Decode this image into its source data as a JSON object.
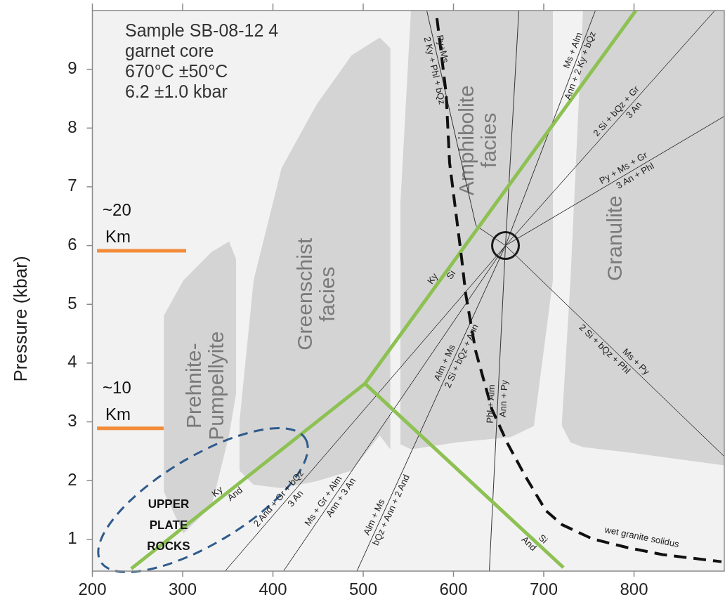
{
  "chart_data": {
    "type": "line",
    "ylabel": "Pressure (kbar)",
    "xlim": [
      200,
      900
    ],
    "ylim": [
      0.46,
      10
    ],
    "xticks": [
      200,
      300,
      400,
      500,
      600,
      700,
      800
    ],
    "yticks": [
      1,
      2,
      3,
      4,
      5,
      6,
      7,
      8,
      9
    ],
    "grid": false,
    "series": [
      {
        "type": "area",
        "name": "Prehnite-Pumpellyite",
        "x": [
          279.2,
          300.9,
          332.0,
          351.4,
          359.2
        ],
        "values": [
          null,
          null,
          null,
          null,
          null
        ],
        "upper": [
          4.81,
          5.41,
          5.89,
          6.07,
          5.77
        ],
        "lower": [
          1.81,
          1.1,
          1.57,
          2.77,
          3.49
        ]
      },
      {
        "type": "area",
        "name": "Greenschist facies",
        "x": [
          363.0,
          378.6,
          409.6,
          448.4,
          487.3,
          518.3,
          530.0
        ],
        "values": [
          null,
          null,
          null,
          null,
          null,
          null,
          null
        ],
        "upper": [
          3.01,
          5.41,
          7.32,
          8.4,
          9.24,
          9.54,
          9.36
        ],
        "lower": [
          2.17,
          1.93,
          1.87,
          1.99,
          2.17,
          2.77,
          2.53
        ]
      },
      {
        "type": "area",
        "name": "Amphibolite facies",
        "x": [
          541.2,
          552.9,
          603.5,
          663.4,
          689.1,
          710.1
        ],
        "values": [
          null,
          null,
          null,
          null,
          null,
          null
        ],
        "upper": [
          6.72,
          10.0,
          10.0,
          10.0,
          10.0,
          10.0
        ],
        "lower": [
          2.62,
          2.53,
          2.65,
          2.74,
          2.93,
          5.41
        ]
      },
      {
        "type": "area",
        "name": "Granulite",
        "x": [
          720.2,
          729.6,
          743.5,
          798.0,
          900
        ],
        "values": [
          null,
          null,
          null,
          null,
          null
        ],
        "upper": [
          3.01,
          5.41,
          10.0,
          10.0,
          10.0
        ],
        "lower": [
          2.93,
          2.65,
          2.57,
          2.47,
          2.26
        ]
      },
      {
        "type": "line",
        "color": "#333333",
        "x": [
          570.4,
          624.9,
          657.6
        ],
        "values": [
          10.0,
          6.34,
          6.0
        ]
      },
      {
        "type": "line",
        "color": "#333333",
        "x": [
          657.6,
          672.4
        ],
        "values": [
          6.0,
          10.0
        ]
      },
      {
        "type": "line",
        "color": "#333333",
        "x": [
          657.6,
          757.2
        ],
        "values": [
          6.0,
          10.0
        ]
      },
      {
        "type": "line",
        "color": "#333333",
        "x": [
          347,
          657.6,
          889.5
        ],
        "values": [
          0.46,
          6.0,
          10.0
        ]
      },
      {
        "type": "line",
        "color": "#333333",
        "x": [
          657.6,
          900
        ],
        "values": [
          6.0,
          8.2
        ]
      },
      {
        "type": "line",
        "color": "#333333",
        "x": [
          657.6,
          900
        ],
        "values": [
          6.0,
          2.41
        ]
      },
      {
        "type": "line",
        "color": "#333333",
        "x": [
          639.7,
          657.6
        ],
        "values": [
          0.46,
          6.0
        ]
      },
      {
        "type": "line",
        "color": "#333333",
        "x": [
          411.7,
          657.6
        ],
        "values": [
          0.46,
          6.0
        ]
      },
      {
        "type": "line",
        "color": "#333333",
        "x": [
          493,
          657.6
        ],
        "values": [
          0.46,
          6.0
        ]
      },
      {
        "type": "line",
        "color": "#8dc153",
        "x": [
          243,
          501.9,
          802
        ],
        "values": [
          0.5,
          3.65,
          10.0
        ]
      },
      {
        "type": "line",
        "color": "#8dc153",
        "x": [
          501.9,
          721.8
        ],
        "values": [
          3.65,
          0.52
        ]
      },
      {
        "type": "line",
        "color": "#111111",
        "line_style": "dashed",
        "x": [
          581.7,
          591.8,
          595.7,
          608.9,
          613.6,
          624.5,
          642.4,
          660.3,
          679.0,
          702.3,
          720.2,
          753.7,
          792.6,
          831.5,
          896.9
        ],
        "values": [
          9.87,
          8.6,
          7.41,
          5.8,
          5.17,
          4.21,
          3.22,
          2.62,
          2.09,
          1.49,
          1.25,
          1.01,
          0.86,
          0.74,
          0.62
        ]
      },
      {
        "type": "line",
        "name": "~20 Km",
        "color": "#f28c3a",
        "x": [
          205.1,
          303.9
        ],
        "values": [
          5.91,
          5.91
        ]
      },
      {
        "type": "line",
        "name": "~10 Km",
        "color": "#f28c3a",
        "x": [
          205.1,
          279
        ],
        "values": [
          2.89,
          2.89
        ]
      },
      {
        "type": "scatter",
        "marker": "circle",
        "color": "#1a1a1a",
        "x": [
          657.6
        ],
        "values": [
          6.0
        ]
      }
    ],
    "annotations": [
      "Sample SB-08-12 4",
      "garnet core",
      "670°C ±50°C",
      "6.2 ±1.0 kbar",
      "UPPER PLATE ROCKS",
      {
        "text": "Ky",
        "x": 343,
        "y": 1.72
      },
      {
        "text": "And",
        "x": 354,
        "y": 1.85
      },
      {
        "text": "Ky",
        "x": 583,
        "y": 5.37
      },
      {
        "text": "Si",
        "x": 592,
        "y": 5.56
      },
      {
        "text": "Si",
        "x": 694,
        "y": 0.92
      },
      {
        "text": "And",
        "x": 688,
        "y": 1.0
      },
      {
        "text": "Py+Ms",
        "x": 580.5,
        "y": 9.32
      },
      {
        "text": "2 Ky + Phl + bQz",
        "x": 585.3,
        "y": 9.0
      },
      {
        "text": "Ms + Alm",
        "x": 739.3,
        "y": 9.28
      },
      {
        "text": "Ann + 2 Ky + bQz",
        "x": 734.3,
        "y": 9.1
      },
      {
        "text": "2 Si + bQz + Gr",
        "x": 786,
        "y": 8.21
      },
      {
        "text": "3 An",
        "x": 795,
        "y": 8.37
      },
      {
        "text": "Py + Ms + Gr",
        "x": 792,
        "y": 7.22
      },
      {
        "text": "3 An + Phl",
        "x": 798,
        "y": 7.27
      },
      {
        "text": "Ms + Py",
        "x": 797,
        "y": 3.94
      },
      {
        "text": "2 Si + bQz + Phl",
        "x": 772,
        "y": 4.31
      },
      {
        "text": "Alm + Ms",
        "x": 597,
        "y": 3.96
      },
      {
        "text": "2 Si + bQz + Ann",
        "x": 603,
        "y": 4.16
      },
      {
        "text": "Phl + Alm",
        "x": 648.9,
        "y": 3.3
      },
      {
        "text": "Ann + Py",
        "x": 649.2,
        "y": 3.4
      },
      {
        "text": "2 And + Gr + bQz",
        "x": 412,
        "y": 1.62
      },
      {
        "text": "3 An",
        "x": 420,
        "y": 1.76
      },
      {
        "text": "Ms + Gr + Alm",
        "x": 462,
        "y": 1.59
      },
      {
        "text": "Ann + 3 An",
        "x": 470,
        "y": 1.77
      },
      {
        "text": "Alm + Ms",
        "x": 519,
        "y": 1.33
      },
      {
        "text": "bQz + Ann + 2 And",
        "x": 525,
        "y": 1.54
      },
      {
        "text": "wet granite solidus",
        "x": 805.8,
        "y": 0.82
      }
    ]
  }
}
